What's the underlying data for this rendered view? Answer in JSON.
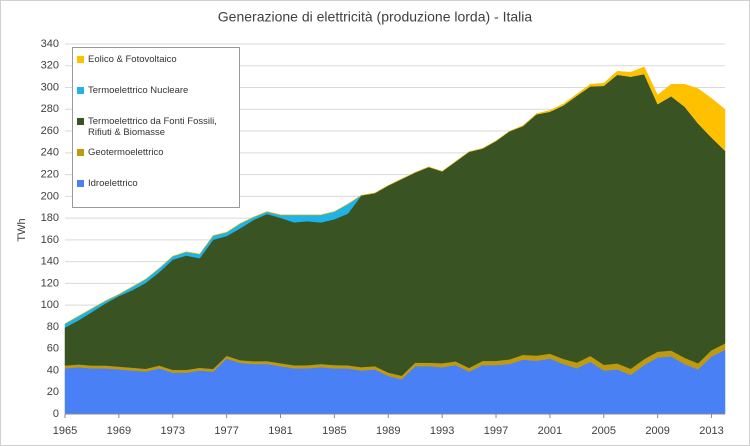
{
  "chart_data": {
    "type": "stacked-area",
    "title": "Generazione di elettricità  (produzione lorda) - Italia",
    "y_label": "TWh",
    "x": [
      1965,
      1966,
      1967,
      1968,
      1969,
      1970,
      1971,
      1972,
      1973,
      1974,
      1975,
      1976,
      1977,
      1978,
      1979,
      1980,
      1981,
      1982,
      1983,
      1984,
      1985,
      1986,
      1987,
      1988,
      1989,
      1990,
      1991,
      1992,
      1993,
      1994,
      1995,
      1996,
      1997,
      1998,
      1999,
      2000,
      2001,
      2002,
      2003,
      2004,
      2005,
      2006,
      2007,
      2008,
      2009,
      2010,
      2011,
      2012,
      2013,
      2014
    ],
    "xlim": [
      1965,
      2014
    ],
    "xticks": [
      1965,
      1969,
      1973,
      1977,
      1981,
      1985,
      1989,
      1993,
      1997,
      2001,
      2005,
      2009,
      2013
    ],
    "ylim": [
      0,
      340
    ],
    "yticks": [
      0,
      20,
      40,
      60,
      80,
      100,
      120,
      140,
      160,
      180,
      200,
      220,
      240,
      260,
      280,
      300,
      320,
      340
    ],
    "grid": true,
    "series": [
      {
        "name": "Idroelettrico",
        "color": "#4a80f5",
        "values": [
          42,
          43,
          42,
          42,
          41,
          40,
          39,
          42,
          38,
          38,
          40,
          39,
          51,
          47,
          46,
          46,
          44,
          42,
          42,
          43,
          42,
          42,
          40,
          41,
          35,
          32,
          44,
          44,
          43,
          45,
          39,
          45,
          45,
          46,
          50,
          49,
          51,
          46,
          42,
          48,
          40,
          41,
          36,
          45,
          52,
          53,
          46,
          41,
          53,
          59
        ]
      },
      {
        "name": "Geotermoelettrico",
        "color": "#bf9a0e",
        "values": [
          2.6,
          2.6,
          2.6,
          2.6,
          2.6,
          2.6,
          2.6,
          2.6,
          2.6,
          2.6,
          2.5,
          2.5,
          2.5,
          2.5,
          2.6,
          2.7,
          2.7,
          2.8,
          2.9,
          3.0,
          3.0,
          2.8,
          3.1,
          3.0,
          3.1,
          3.2,
          3.2,
          3.2,
          3.7,
          3.4,
          3.4,
          3.8,
          3.9,
          4.2,
          4.4,
          4.7,
          4.5,
          4.7,
          5.3,
          5.4,
          5.3,
          5.5,
          5.6,
          5.5,
          5.3,
          5.4,
          5.7,
          5.6,
          5.7,
          5.9
        ]
      },
      {
        "name": "Termoelettrico da Fonti Fossili, Rifiuti & Biomasse",
        "color": "#3a5322",
        "values": [
          34.9,
          40.5,
          49.2,
          57.0,
          64.8,
          71.2,
          79.0,
          85.8,
          101.3,
          105.0,
          100.7,
          118.7,
          110.1,
          121.1,
          129.8,
          135.2,
          133.6,
          131.4,
          132.3,
          130.1,
          134.0,
          139.4,
          157.7,
          159.0,
          171.9,
          180.8,
          174.8,
          179.8,
          176.3,
          183.6,
          198.6,
          195.2,
          202.0,
          209.6,
          210.2,
          221.7,
          222.3,
          232.9,
          245.2,
          247.7,
          256.3,
          265.3,
          268.4,
          261.9,
          227.5,
          233.6,
          230.8,
          220.4,
          195.3,
          177.1
        ]
      },
      {
        "name": "Termoelettrico Nucleare",
        "color": "#1fb3e8",
        "values": [
          3.5,
          3.9,
          3.2,
          2.4,
          1.6,
          3.2,
          3.4,
          3.6,
          3.1,
          3.4,
          3.8,
          3.8,
          3.4,
          4.4,
          2.6,
          2.1,
          2.7,
          6.8,
          5.8,
          6.9,
          7.0,
          8.8,
          0.2,
          0,
          0,
          0,
          0,
          0,
          0,
          0,
          0,
          0,
          0,
          0,
          0,
          0,
          0,
          0,
          0,
          0,
          0,
          0,
          0,
          0,
          0,
          0,
          0,
          0,
          0,
          0
        ]
      },
      {
        "name": "Eolico & Fotovoltaico",
        "color": "#ffc000",
        "values": [
          0,
          0,
          0,
          0,
          0,
          0,
          0,
          0,
          0,
          0,
          0,
          0,
          0,
          0,
          0,
          0,
          0,
          0,
          0,
          0,
          0,
          0,
          0,
          0,
          0,
          0,
          0,
          0,
          0,
          0,
          0,
          0,
          0.1,
          0.2,
          0.4,
          0.6,
          1.2,
          1.4,
          1.5,
          1.9,
          2.4,
          3.2,
          4.0,
          6.6,
          8.2,
          11.0,
          20.5,
          32.0,
          36.0,
          38.0
        ]
      }
    ]
  }
}
